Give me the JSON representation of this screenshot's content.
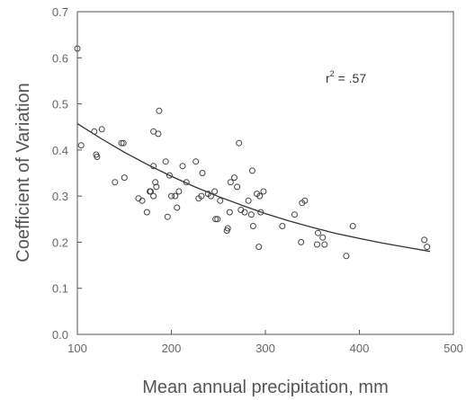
{
  "chart_data": {
    "type": "scatter",
    "xlabel": "Mean annual precipitation, mm",
    "ylabel": "Coefficient of Variation",
    "xlim": [
      100,
      500
    ],
    "ylim": [
      0.0,
      0.7
    ],
    "x_ticks": [
      "100",
      "200",
      "300",
      "400",
      "500"
    ],
    "y_ticks": [
      "0.0",
      "0.1",
      "0.2",
      "0.3",
      "0.4",
      "0.5",
      "0.6",
      "0.7"
    ],
    "grid": false,
    "annotation": {
      "base": "r",
      "sup": "2",
      "rest": " = .57"
    },
    "points": [
      [
        100,
        0.62
      ],
      [
        104,
        0.41
      ],
      [
        118,
        0.44
      ],
      [
        120,
        0.39
      ],
      [
        121,
        0.385
      ],
      [
        126,
        0.445
      ],
      [
        140,
        0.33
      ],
      [
        147,
        0.415
      ],
      [
        149,
        0.415
      ],
      [
        150,
        0.34
      ],
      [
        165,
        0.295
      ],
      [
        169,
        0.29
      ],
      [
        174,
        0.265
      ],
      [
        177,
        0.31
      ],
      [
        178,
        0.31
      ],
      [
        181,
        0.365
      ],
      [
        181,
        0.44
      ],
      [
        181,
        0.3
      ],
      [
        183,
        0.33
      ],
      [
        184,
        0.32
      ],
      [
        186,
        0.435
      ],
      [
        187,
        0.485
      ],
      [
        194,
        0.375
      ],
      [
        196,
        0.255
      ],
      [
        198,
        0.345
      ],
      [
        200,
        0.3
      ],
      [
        204,
        0.3
      ],
      [
        206,
        0.275
      ],
      [
        208,
        0.31
      ],
      [
        212,
        0.365
      ],
      [
        216,
        0.33
      ],
      [
        226,
        0.375
      ],
      [
        229,
        0.295
      ],
      [
        232,
        0.3
      ],
      [
        233,
        0.35
      ],
      [
        239,
        0.305
      ],
      [
        242,
        0.3
      ],
      [
        246,
        0.31
      ],
      [
        247,
        0.25
      ],
      [
        249,
        0.25
      ],
      [
        252,
        0.29
      ],
      [
        259,
        0.225
      ],
      [
        260,
        0.23
      ],
      [
        262,
        0.265
      ],
      [
        263,
        0.33
      ],
      [
        267,
        0.34
      ],
      [
        270,
        0.32
      ],
      [
        272,
        0.415
      ],
      [
        274,
        0.27
      ],
      [
        278,
        0.265
      ],
      [
        282,
        0.29
      ],
      [
        285,
        0.26
      ],
      [
        286,
        0.355
      ],
      [
        287,
        0.235
      ],
      [
        291,
        0.305
      ],
      [
        293,
        0.19
      ],
      [
        294,
        0.3
      ],
      [
        295,
        0.265
      ],
      [
        298,
        0.31
      ],
      [
        318,
        0.235
      ],
      [
        331,
        0.26
      ],
      [
        338,
        0.2
      ],
      [
        339,
        0.285
      ],
      [
        342,
        0.29
      ],
      [
        355,
        0.195
      ],
      [
        356,
        0.22
      ],
      [
        361,
        0.21
      ],
      [
        363,
        0.195
      ],
      [
        386,
        0.17
      ],
      [
        393,
        0.235
      ],
      [
        469,
        0.205
      ],
      [
        472,
        0.19
      ]
    ],
    "fit_curve": [
      [
        100,
        0.457
      ],
      [
        125,
        0.425
      ],
      [
        150,
        0.395
      ],
      [
        175,
        0.368
      ],
      [
        200,
        0.343
      ],
      [
        225,
        0.32
      ],
      [
        250,
        0.299
      ],
      [
        275,
        0.28
      ],
      [
        300,
        0.262
      ],
      [
        325,
        0.246
      ],
      [
        350,
        0.232
      ],
      [
        375,
        0.219
      ],
      [
        400,
        0.208
      ],
      [
        425,
        0.198
      ],
      [
        450,
        0.189
      ],
      [
        475,
        0.18
      ]
    ]
  }
}
